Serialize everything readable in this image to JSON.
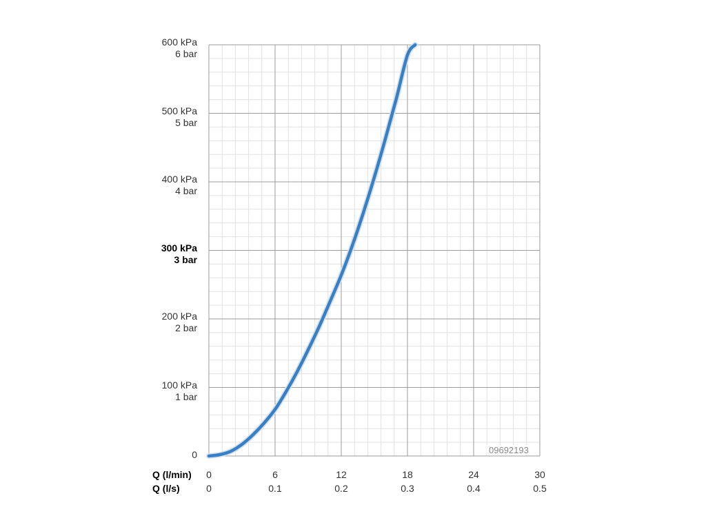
{
  "chart_data": {
    "type": "line",
    "x_axis": {
      "row1_title": "Q (l/min)",
      "row1_ticks": [
        "0",
        "6",
        "12",
        "18",
        "24",
        "30"
      ],
      "row2_title": "Q (l/s)",
      "row2_ticks": [
        "0",
        "0.1",
        "0.2",
        "0.3",
        "0.4",
        "0.5"
      ],
      "xlim": [
        0,
        30
      ],
      "major_step": 6,
      "minor_step": 1.2
    },
    "y_axis": {
      "ticks": [
        {
          "value": 0,
          "line1": "0",
          "line2": "",
          "bold": false
        },
        {
          "value": 100,
          "line1": "100 kPa",
          "line2": "1 bar",
          "bold": false
        },
        {
          "value": 200,
          "line1": "200 kPa",
          "line2": "2 bar",
          "bold": false
        },
        {
          "value": 300,
          "line1": "300 kPa",
          "line2": "3 bar",
          "bold": true
        },
        {
          "value": 400,
          "line1": "400 kPa",
          "line2": "4 bar",
          "bold": false
        },
        {
          "value": 500,
          "line1": "500 kPa",
          "line2": "5 bar",
          "bold": false
        },
        {
          "value": 600,
          "line1": "600 kPa",
          "line2": "6 bar",
          "bold": false
        }
      ],
      "ylim": [
        0,
        600
      ],
      "major_step": 100,
      "minor_step": 20
    },
    "series": [
      {
        "color": "#3b7fc0",
        "x": [
          0,
          1,
          2,
          3,
          4,
          5,
          6,
          7,
          8,
          9,
          10,
          11,
          12,
          13,
          14,
          15,
          16,
          17,
          18,
          18.7
        ],
        "y": [
          0,
          2,
          7,
          17,
          31,
          48,
          68,
          94,
          123,
          155,
          189,
          226,
          264,
          307,
          355,
          407,
          463,
          522,
          585,
          600
        ]
      }
    ],
    "grid": true,
    "annotation": "09692193"
  }
}
